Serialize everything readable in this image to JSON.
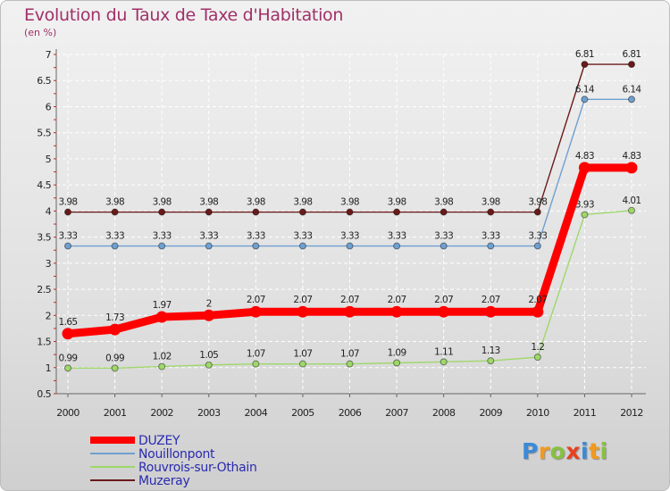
{
  "chart_data": {
    "type": "line",
    "title": "Evolution du Taux de Taxe d'Habitation",
    "unit_label": "(en %)",
    "x": [
      "2000",
      "2001",
      "2002",
      "2003",
      "2004",
      "2005",
      "2006",
      "2007",
      "2008",
      "2009",
      "2010",
      "2011",
      "2012"
    ],
    "ylim": [
      0.5,
      7
    ],
    "yticks": [
      "0.5",
      "1",
      "1.5",
      "2",
      "2.5",
      "3",
      "3.5",
      "4",
      "4.5",
      "5",
      "5.5",
      "6",
      "6.5",
      "7"
    ],
    "series": [
      {
        "name": "Muzeray",
        "color": "#6b1a1a",
        "values": [
          3.98,
          3.98,
          3.98,
          3.98,
          3.98,
          3.98,
          3.98,
          3.98,
          3.98,
          3.98,
          3.98,
          6.81,
          6.81
        ],
        "labels": [
          "3.98",
          "3.98",
          "3.98",
          "3.98",
          "3.98",
          "3.98",
          "3.98",
          "3.98",
          "3.98",
          "3.98",
          "3.98",
          "6.81",
          "6.81"
        ]
      },
      {
        "name": "Nouillonpont",
        "color": "#6fa0d0",
        "values": [
          3.33,
          3.33,
          3.33,
          3.33,
          3.33,
          3.33,
          3.33,
          3.33,
          3.33,
          3.33,
          3.33,
          6.14,
          6.14
        ],
        "labels": [
          "3.33",
          "3.33",
          "3.33",
          "3.33",
          "3.33",
          "3.33",
          "3.33",
          "3.33",
          "3.33",
          "3.33",
          "3.33",
          "6.14",
          "6.14"
        ]
      },
      {
        "name": "Rouvrois-sur-Othain",
        "color": "#9ed86a",
        "values": [
          0.99,
          0.99,
          1.02,
          1.05,
          1.07,
          1.07,
          1.07,
          1.09,
          1.11,
          1.13,
          1.2,
          3.93,
          4.01
        ],
        "labels": [
          "0.99",
          "0.99",
          "1.02",
          "1.05",
          "1.07",
          "1.07",
          "1.07",
          "1.09",
          "1.11",
          "1.13",
          "1.2",
          "3.93",
          "4.01"
        ]
      },
      {
        "name": "DUZEY",
        "color": "#ff0000",
        "values": [
          1.65,
          1.73,
          1.97,
          2,
          2.07,
          2.07,
          2.07,
          2.07,
          2.07,
          2.07,
          2.07,
          4.83,
          4.83
        ],
        "labels": [
          "1.65",
          "1.73",
          "1.97",
          "2",
          "2.07",
          "2.07",
          "2.07",
          "2.07",
          "2.07",
          "2.07",
          "2.07",
          "4.83",
          "4.83"
        ]
      }
    ],
    "legend": [
      "DUZEY",
      "Nouillonpont",
      "Rouvrois-sur-Othain",
      "Muzeray"
    ],
    "legend_colors": [
      "#ff0000",
      "#6fa0d0",
      "#9ed86a",
      "#6b1a1a"
    ]
  },
  "brand": {
    "letters": [
      "P",
      "r",
      "o",
      "x",
      "i",
      "t",
      "i"
    ],
    "colors": [
      "#3a8ad8",
      "#f09a20",
      "#88c040",
      "#e84020",
      "#3a8ad8",
      "#f09a20",
      "#88c040"
    ]
  }
}
